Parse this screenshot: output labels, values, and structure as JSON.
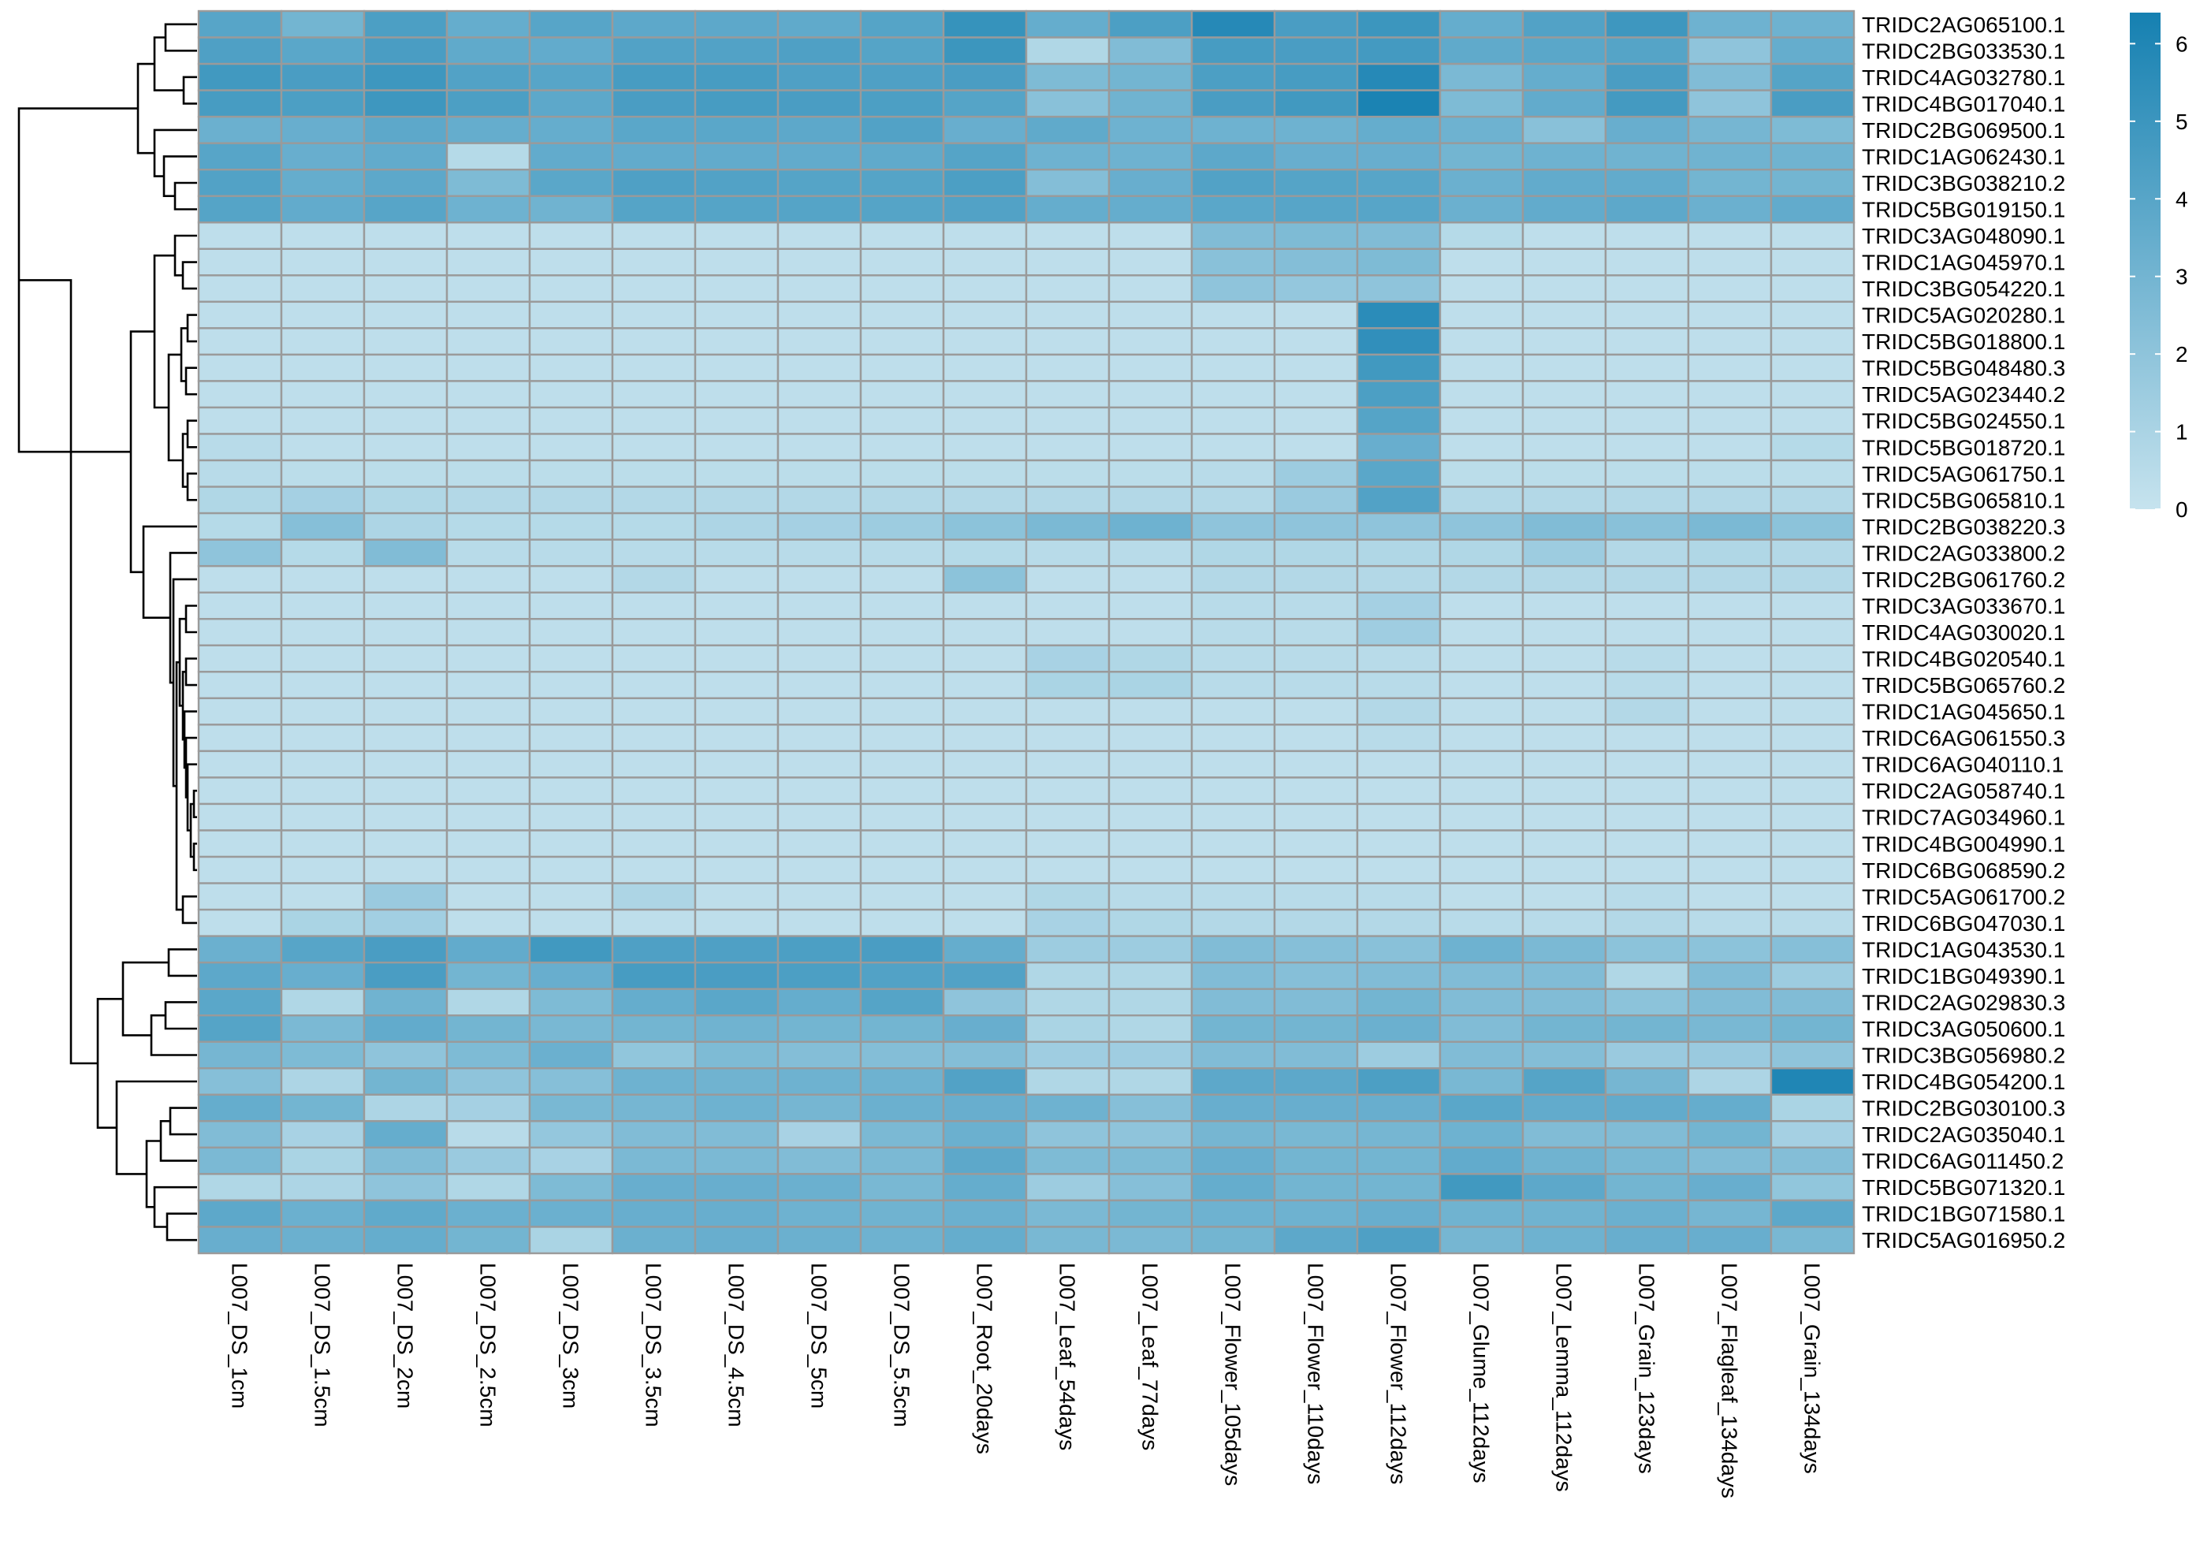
{
  "chart_data": {
    "type": "heatmap",
    "title": "",
    "xlabel": "",
    "ylabel": "",
    "columns": [
      "L007_DS_1cm",
      "L007_DS_1.5cm",
      "L007_DS_2cm",
      "L007_DS_2.5cm",
      "L007_DS_3cm",
      "L007_DS_3.5cm",
      "L007_DS_4.5cm",
      "L007_DS_5cm",
      "L007_DS_5.5cm",
      "L007_Root_20days",
      "L007_Leaf_54days",
      "L007_Leaf_77days",
      "L007_Flower_105days",
      "L007_Flower_110days",
      "L007_Flower_112days",
      "L007_Glume_112days",
      "L007_Lemma_112days",
      "L007_Grain_123days",
      "L007_Flagleaf_134days",
      "L007_Grain_134days"
    ],
    "rows": [
      "TRIDC2AG065100.1",
      "TRIDC2BG033530.1",
      "TRIDC4AG032780.1",
      "TRIDC4BG017040.1",
      "TRIDC2BG069500.1",
      "TRIDC1AG062430.1",
      "TRIDC3BG038210.2",
      "TRIDC5BG019150.1",
      "TRIDC3AG048090.1",
      "TRIDC1AG045970.1",
      "TRIDC3BG054220.1",
      "TRIDC5AG020280.1",
      "TRIDC5BG018800.1",
      "TRIDC5BG048480.3",
      "TRIDC5AG023440.2",
      "TRIDC5BG024550.1",
      "TRIDC5BG018720.1",
      "TRIDC5AG061750.1",
      "TRIDC5BG065810.1",
      "TRIDC2BG038220.3",
      "TRIDC2AG033800.2",
      "TRIDC2BG061760.2",
      "TRIDC3AG033670.1",
      "TRIDC4AG030020.1",
      "TRIDC4BG020540.1",
      "TRIDC5BG065760.2",
      "TRIDC1AG045650.1",
      "TRIDC6AG061550.3",
      "TRIDC6AG040110.1",
      "TRIDC2AG058740.1",
      "TRIDC7AG034960.1",
      "TRIDC4BG004990.1",
      "TRIDC6BG068590.2",
      "TRIDC5AG061700.2",
      "TRIDC6BG047030.1",
      "TRIDC1AG043530.1",
      "TRIDC1BG049390.1",
      "TRIDC2AG029830.3",
      "TRIDC3AG050600.1",
      "TRIDC3BG056980.2",
      "TRIDC4BG054200.1",
      "TRIDC2BG030100.3",
      "TRIDC2AG035040.1",
      "TRIDC6AG011450.2",
      "TRIDC5BG071320.1",
      "TRIDC1BG071580.1",
      "TRIDC5AG016950.2"
    ],
    "values": [
      [
        4.0,
        3.0,
        4.4,
        3.5,
        4.0,
        3.8,
        3.8,
        3.7,
        4.1,
        5.2,
        3.5,
        4.4,
        5.8,
        4.5,
        5.0,
        3.5,
        4.2,
        4.9,
        3.2,
        3.2
      ],
      [
        4.3,
        3.9,
        4.5,
        3.7,
        3.6,
        4.2,
        4.2,
        4.3,
        4.1,
        5.0,
        0.8,
        2.5,
        4.6,
        4.5,
        4.7,
        3.7,
        3.9,
        4.1,
        2.0,
        3.5
      ],
      [
        4.8,
        4.5,
        4.9,
        4.2,
        4.0,
        4.6,
        4.6,
        4.3,
        4.3,
        4.5,
        2.6,
        3.0,
        4.4,
        4.6,
        5.8,
        2.7,
        3.5,
        4.5,
        2.5,
        4.1
      ],
      [
        4.6,
        4.4,
        4.9,
        4.4,
        3.8,
        4.5,
        4.6,
        4.5,
        4.4,
        4.1,
        2.2,
        3.1,
        4.5,
        4.8,
        6.2,
        2.6,
        3.6,
        4.7,
        2.0,
        4.5
      ],
      [
        3.3,
        3.4,
        3.8,
        3.5,
        3.5,
        3.9,
        3.9,
        3.8,
        4.2,
        3.4,
        3.7,
        3.2,
        3.2,
        3.2,
        3.5,
        3.2,
        2.2,
        3.4,
        2.9,
        2.6
      ],
      [
        4.0,
        3.4,
        3.6,
        0.6,
        3.6,
        3.6,
        3.6,
        3.6,
        3.7,
        4.1,
        3.2,
        3.2,
        3.8,
        3.4,
        3.4,
        3.0,
        3.2,
        3.1,
        3.1,
        3.1
      ],
      [
        4.2,
        3.5,
        3.8,
        2.6,
        3.9,
        4.3,
        4.2,
        4.1,
        4.1,
        4.4,
        2.4,
        3.4,
        4.2,
        4.1,
        4.0,
        3.3,
        3.6,
        3.6,
        3.0,
        3.0
      ],
      [
        4.1,
        3.6,
        4.0,
        3.2,
        3.1,
        4.1,
        4.1,
        4.1,
        4.1,
        4.2,
        3.5,
        3.5,
        3.9,
        4.0,
        4.0,
        3.3,
        3.6,
        3.8,
        3.3,
        3.6
      ],
      [
        0.3,
        0.3,
        0.3,
        0.3,
        0.3,
        0.3,
        0.3,
        0.3,
        0.3,
        0.3,
        0.3,
        0.3,
        2.5,
        2.6,
        2.5,
        0.6,
        0.3,
        0.3,
        0.3,
        0.3
      ],
      [
        0.3,
        0.3,
        0.3,
        0.3,
        0.3,
        0.3,
        0.3,
        0.3,
        0.3,
        0.3,
        0.3,
        0.3,
        2.2,
        2.4,
        2.6,
        0.3,
        0.3,
        0.3,
        0.3,
        0.3
      ],
      [
        0.3,
        0.3,
        0.3,
        0.3,
        0.3,
        0.3,
        0.3,
        0.3,
        0.3,
        0.3,
        0.3,
        0.3,
        2.0,
        1.8,
        2.0,
        0.3,
        0.3,
        0.3,
        0.3,
        0.3
      ],
      [
        0.3,
        0.3,
        0.3,
        0.3,
        0.3,
        0.3,
        0.3,
        0.3,
        0.3,
        0.3,
        0.3,
        0.3,
        0.3,
        0.3,
        5.6,
        0.3,
        0.3,
        0.3,
        0.3,
        0.3
      ],
      [
        0.3,
        0.3,
        0.3,
        0.3,
        0.3,
        0.3,
        0.3,
        0.3,
        0.3,
        0.3,
        0.3,
        0.3,
        0.3,
        0.3,
        5.4,
        0.3,
        0.3,
        0.3,
        0.3,
        0.3
      ],
      [
        0.3,
        0.3,
        0.3,
        0.3,
        0.3,
        0.3,
        0.3,
        0.3,
        0.3,
        0.3,
        0.3,
        0.3,
        0.3,
        0.3,
        4.8,
        0.3,
        0.3,
        0.3,
        0.3,
        0.3
      ],
      [
        0.3,
        0.3,
        0.3,
        0.3,
        0.3,
        0.3,
        0.3,
        0.3,
        0.3,
        0.3,
        0.3,
        0.3,
        0.3,
        0.3,
        4.4,
        0.3,
        0.3,
        0.3,
        0.3,
        0.3
      ],
      [
        0.3,
        0.3,
        0.3,
        0.3,
        0.3,
        0.3,
        0.3,
        0.3,
        0.3,
        0.3,
        0.3,
        0.3,
        0.3,
        0.3,
        4.1,
        0.3,
        0.3,
        0.3,
        0.3,
        0.3
      ],
      [
        0.5,
        0.3,
        0.3,
        0.3,
        0.3,
        0.3,
        0.3,
        0.3,
        0.3,
        0.3,
        0.3,
        0.3,
        0.3,
        0.3,
        3.4,
        0.3,
        0.3,
        0.3,
        0.3,
        0.6
      ],
      [
        0.5,
        0.4,
        0.4,
        0.4,
        0.4,
        0.4,
        0.4,
        0.4,
        0.4,
        0.4,
        0.4,
        0.4,
        0.5,
        1.5,
        3.9,
        0.4,
        0.4,
        0.4,
        0.4,
        0.4
      ],
      [
        0.8,
        1.2,
        0.8,
        0.7,
        0.7,
        0.7,
        0.7,
        0.7,
        0.7,
        0.7,
        0.7,
        0.7,
        0.7,
        1.6,
        4.2,
        0.7,
        0.7,
        0.7,
        0.7,
        0.7
      ],
      [
        0.6,
        2.3,
        0.9,
        0.6,
        0.6,
        0.6,
        0.9,
        1.2,
        1.5,
        2.1,
        2.7,
        3.2,
        2.0,
        2.0,
        2.0,
        2.0,
        2.5,
        2.2,
        2.7,
        2.1
      ],
      [
        2.0,
        0.6,
        2.5,
        0.5,
        0.5,
        0.5,
        0.5,
        0.5,
        0.5,
        0.6,
        0.5,
        0.5,
        0.8,
        0.8,
        0.8,
        0.8,
        1.5,
        0.7,
        0.8,
        0.7
      ],
      [
        0.3,
        0.3,
        0.3,
        0.3,
        0.3,
        0.7,
        0.3,
        0.3,
        0.3,
        2.1,
        0.3,
        0.3,
        0.7,
        0.7,
        0.7,
        0.7,
        0.7,
        0.7,
        0.7,
        0.7
      ],
      [
        0.3,
        0.3,
        0.3,
        0.3,
        0.3,
        0.3,
        0.3,
        0.3,
        0.3,
        0.3,
        0.3,
        0.3,
        0.5,
        0.5,
        1.2,
        0.3,
        0.3,
        0.3,
        0.3,
        0.3
      ],
      [
        0.3,
        0.3,
        0.3,
        0.3,
        0.3,
        0.3,
        0.3,
        0.3,
        0.3,
        0.3,
        0.3,
        0.3,
        0.5,
        0.5,
        1.4,
        0.3,
        0.3,
        0.3,
        0.3,
        0.3
      ],
      [
        0.3,
        0.3,
        0.3,
        0.3,
        0.3,
        0.3,
        0.3,
        0.3,
        0.3,
        0.3,
        1.1,
        0.8,
        0.5,
        0.5,
        0.5,
        0.3,
        0.3,
        0.5,
        0.3,
        0.3
      ],
      [
        0.3,
        0.3,
        0.3,
        0.3,
        0.3,
        0.3,
        0.3,
        0.3,
        0.3,
        0.3,
        1.0,
        1.0,
        0.5,
        0.5,
        0.5,
        0.3,
        0.3,
        0.5,
        0.3,
        0.3
      ],
      [
        0.3,
        0.3,
        0.3,
        0.3,
        0.3,
        0.3,
        0.3,
        0.3,
        0.3,
        0.3,
        0.3,
        0.3,
        0.3,
        0.3,
        0.7,
        0.3,
        0.3,
        0.7,
        0.3,
        0.3
      ],
      [
        0.3,
        0.3,
        0.3,
        0.3,
        0.3,
        0.3,
        0.3,
        0.3,
        0.3,
        0.3,
        0.3,
        0.3,
        0.3,
        0.3,
        0.5,
        0.3,
        0.3,
        0.3,
        0.3,
        0.3
      ],
      [
        0.3,
        0.3,
        0.3,
        0.3,
        0.3,
        0.3,
        0.3,
        0.3,
        0.3,
        0.3,
        0.3,
        0.3,
        0.3,
        0.3,
        0.3,
        0.3,
        0.3,
        0.3,
        0.3,
        0.3
      ],
      [
        0.3,
        0.3,
        0.3,
        0.3,
        0.3,
        0.3,
        0.3,
        0.3,
        0.3,
        0.3,
        0.3,
        0.3,
        0.3,
        0.3,
        0.3,
        0.3,
        0.3,
        0.3,
        0.3,
        0.3
      ],
      [
        0.3,
        0.3,
        0.3,
        0.3,
        0.3,
        0.3,
        0.3,
        0.3,
        0.3,
        0.3,
        0.3,
        0.3,
        0.3,
        0.3,
        0.3,
        0.3,
        0.3,
        0.3,
        0.3,
        0.3
      ],
      [
        0.3,
        0.3,
        0.3,
        0.3,
        0.3,
        0.3,
        0.3,
        0.3,
        0.3,
        0.3,
        0.3,
        0.3,
        0.3,
        0.3,
        0.3,
        0.3,
        0.3,
        0.3,
        0.3,
        0.3
      ],
      [
        0.3,
        0.3,
        0.3,
        0.3,
        0.3,
        0.3,
        0.3,
        0.3,
        0.3,
        0.3,
        0.3,
        0.3,
        0.3,
        0.3,
        0.3,
        0.3,
        0.3,
        0.3,
        0.3,
        0.3
      ],
      [
        0.3,
        0.3,
        1.6,
        0.3,
        0.3,
        0.9,
        0.3,
        0.3,
        0.3,
        0.3,
        0.8,
        0.5,
        0.5,
        0.5,
        0.5,
        0.3,
        0.3,
        0.5,
        0.3,
        0.3
      ],
      [
        0.3,
        1.0,
        1.3,
        0.3,
        0.3,
        0.3,
        0.3,
        0.3,
        0.3,
        0.3,
        1.1,
        0.8,
        0.7,
        0.7,
        0.7,
        0.5,
        0.5,
        0.7,
        0.5,
        0.5
      ],
      [
        3.3,
        4.0,
        4.5,
        3.6,
        4.8,
        4.3,
        4.3,
        4.4,
        4.5,
        3.5,
        1.5,
        1.5,
        2.5,
        2.3,
        2.2,
        3.2,
        2.7,
        2.1,
        2.1,
        2.3
      ],
      [
        3.8,
        3.4,
        4.5,
        3.0,
        3.4,
        4.6,
        4.5,
        4.4,
        4.2,
        4.2,
        0.8,
        0.8,
        2.5,
        2.3,
        2.5,
        2.5,
        2.5,
        0.8,
        2.5,
        1.5
      ],
      [
        3.9,
        0.8,
        3.1,
        0.8,
        2.6,
        3.5,
        3.9,
        3.5,
        4.1,
        2.0,
        0.8,
        0.8,
        2.5,
        2.5,
        3.0,
        2.5,
        2.5,
        2.1,
        2.5,
        2.5
      ],
      [
        4.1,
        2.7,
        3.6,
        3.0,
        2.8,
        3.0,
        3.1,
        3.0,
        3.0,
        3.4,
        1.0,
        0.8,
        3.0,
        3.0,
        3.3,
        2.5,
        3.0,
        3.0,
        2.8,
        3.0
      ],
      [
        2.9,
        2.6,
        2.0,
        2.6,
        3.3,
        1.9,
        2.6,
        2.4,
        2.4,
        2.4,
        1.4,
        1.4,
        2.5,
        2.5,
        1.5,
        2.5,
        2.4,
        1.6,
        1.6,
        2.0
      ],
      [
        2.3,
        0.9,
        3.0,
        2.0,
        2.3,
        3.2,
        3.1,
        3.2,
        3.2,
        4.2,
        0.8,
        0.8,
        3.8,
        3.8,
        4.4,
        2.8,
        4.1,
        2.9,
        0.9,
        6.0
      ],
      [
        3.5,
        3.0,
        0.9,
        1.2,
        2.8,
        2.9,
        3.2,
        2.9,
        3.3,
        3.4,
        3.2,
        2.3,
        3.4,
        3.4,
        3.4,
        3.9,
        3.6,
        3.6,
        3.5,
        1.0
      ],
      [
        2.5,
        1.1,
        3.5,
        0.5,
        1.8,
        2.5,
        2.5,
        1.1,
        2.7,
        3.3,
        2.0,
        2.0,
        2.9,
        2.8,
        2.9,
        3.2,
        2.5,
        2.5,
        3.0,
        1.2
      ],
      [
        2.7,
        1.0,
        2.5,
        1.6,
        1.1,
        2.7,
        2.7,
        2.5,
        2.7,
        3.8,
        2.6,
        2.6,
        3.4,
        3.0,
        3.0,
        3.6,
        3.1,
        2.8,
        2.5,
        2.4
      ],
      [
        0.8,
        0.9,
        2.0,
        0.8,
        2.6,
        3.4,
        3.4,
        3.3,
        2.8,
        3.5,
        1.5,
        2.3,
        3.5,
        3.0,
        3.0,
        4.8,
        3.8,
        3.0,
        3.4,
        1.9
      ],
      [
        3.8,
        3.3,
        3.7,
        3.3,
        3.3,
        3.4,
        3.4,
        3.2,
        3.1,
        3.3,
        2.7,
        3.0,
        3.2,
        3.2,
        3.4,
        3.1,
        3.1,
        3.3,
        2.9,
        3.8
      ],
      [
        3.4,
        3.3,
        3.5,
        3.0,
        1.0,
        3.3,
        3.4,
        3.3,
        3.2,
        3.5,
        2.8,
        2.7,
        3.0,
        3.8,
        4.3,
        2.9,
        3.2,
        3.4,
        3.4,
        2.8
      ]
    ],
    "colorbar": {
      "ticks": [
        "0",
        "1",
        "2",
        "3",
        "4",
        "5",
        "6"
      ],
      "min": 0,
      "max": 6.4,
      "color_low": "#c6e3ee",
      "color_high": "#1580b1"
    },
    "cell_border_color": "#9a9a9a",
    "grid": false,
    "legend_position": "right"
  }
}
